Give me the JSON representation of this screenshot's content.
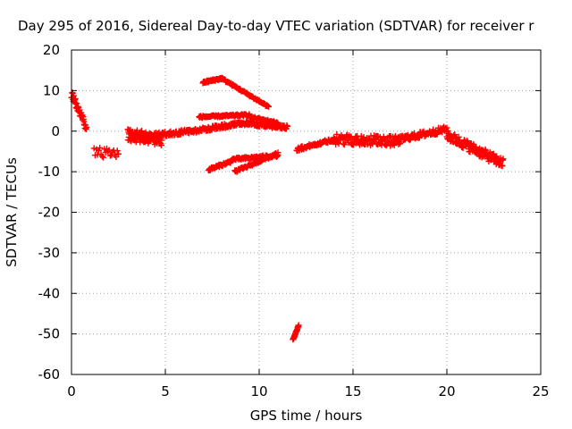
{
  "chart_data": {
    "type": "scatter",
    "title": "Day 295 of 2016, Sidereal Day-to-day VTEC variation (SDTVAR) for receiver r",
    "xlabel": "GPS time / hours",
    "ylabel": "SDTVAR / TECUs",
    "xlim": [
      0,
      25
    ],
    "ylim": [
      -60,
      20
    ],
    "xticks": [
      0,
      5,
      10,
      15,
      20,
      25
    ],
    "yticks": [
      -60,
      -50,
      -40,
      -30,
      -20,
      -10,
      0,
      10,
      20
    ],
    "grid": true,
    "marker": "+",
    "marker_color": "#ff0000",
    "segments": [
      {
        "x0": 0.0,
        "x1": 0.8,
        "y0": 9,
        "y1": 1,
        "n": 40,
        "spread": 2.5
      },
      {
        "x0": 1.2,
        "x1": 2.5,
        "y0": -5,
        "y1": -6,
        "n": 22,
        "spread": 2.5
      },
      {
        "x0": 3.0,
        "x1": 4.8,
        "y0": -1,
        "y1": -2,
        "n": 120,
        "spread": 3.0
      },
      {
        "x0": 4.5,
        "x1": 6.5,
        "y0": -1,
        "y1": 0,
        "n": 60,
        "spread": 1.2
      },
      {
        "x0": 6.5,
        "x1": 9.0,
        "y0": 0,
        "y1": 2,
        "n": 90,
        "spread": 1.0
      },
      {
        "x0": 9.0,
        "x1": 11.5,
        "y0": 2,
        "y1": 1,
        "n": 90,
        "spread": 1.0
      },
      {
        "x0": 12.0,
        "x1": 14.0,
        "y0": -4.5,
        "y1": -2,
        "n": 70,
        "spread": 0.8
      },
      {
        "x0": 14.0,
        "x1": 17.5,
        "y0": -2,
        "y1": -2.5,
        "n": 130,
        "spread": 2.5
      },
      {
        "x0": 17.5,
        "x1": 20.0,
        "y0": -2,
        "y1": 0.5,
        "n": 90,
        "spread": 1.5
      },
      {
        "x0": 20.0,
        "x1": 23.0,
        "y0": -1,
        "y1": -8,
        "n": 130,
        "spread": 2.5
      },
      {
        "x0": 7.0,
        "x1": 8.0,
        "y0": 12,
        "y1": 13,
        "n": 40,
        "spread": 0.5
      },
      {
        "x0": 8.0,
        "x1": 10.5,
        "y0": 13,
        "y1": 6,
        "n": 80,
        "spread": 0.5
      },
      {
        "x0": 6.8,
        "x1": 9.5,
        "y0": 3.5,
        "y1": 4,
        "n": 80,
        "spread": 0.5
      },
      {
        "x0": 9.5,
        "x1": 11.0,
        "y0": 3.5,
        "y1": 2,
        "n": 40,
        "spread": 0.5
      },
      {
        "x0": 7.3,
        "x1": 8.5,
        "y0": -9.5,
        "y1": -7.5,
        "n": 40,
        "spread": 0.6
      },
      {
        "x0": 8.5,
        "x1": 11.0,
        "y0": -7,
        "y1": -6,
        "n": 70,
        "spread": 0.6
      },
      {
        "x0": 8.7,
        "x1": 11.0,
        "y0": -10,
        "y1": -5.5,
        "n": 60,
        "spread": 0.6
      },
      {
        "x0": 11.8,
        "x1": 12.1,
        "y0": -51.5,
        "y1": -48,
        "n": 22,
        "spread": 0.3
      }
    ]
  }
}
